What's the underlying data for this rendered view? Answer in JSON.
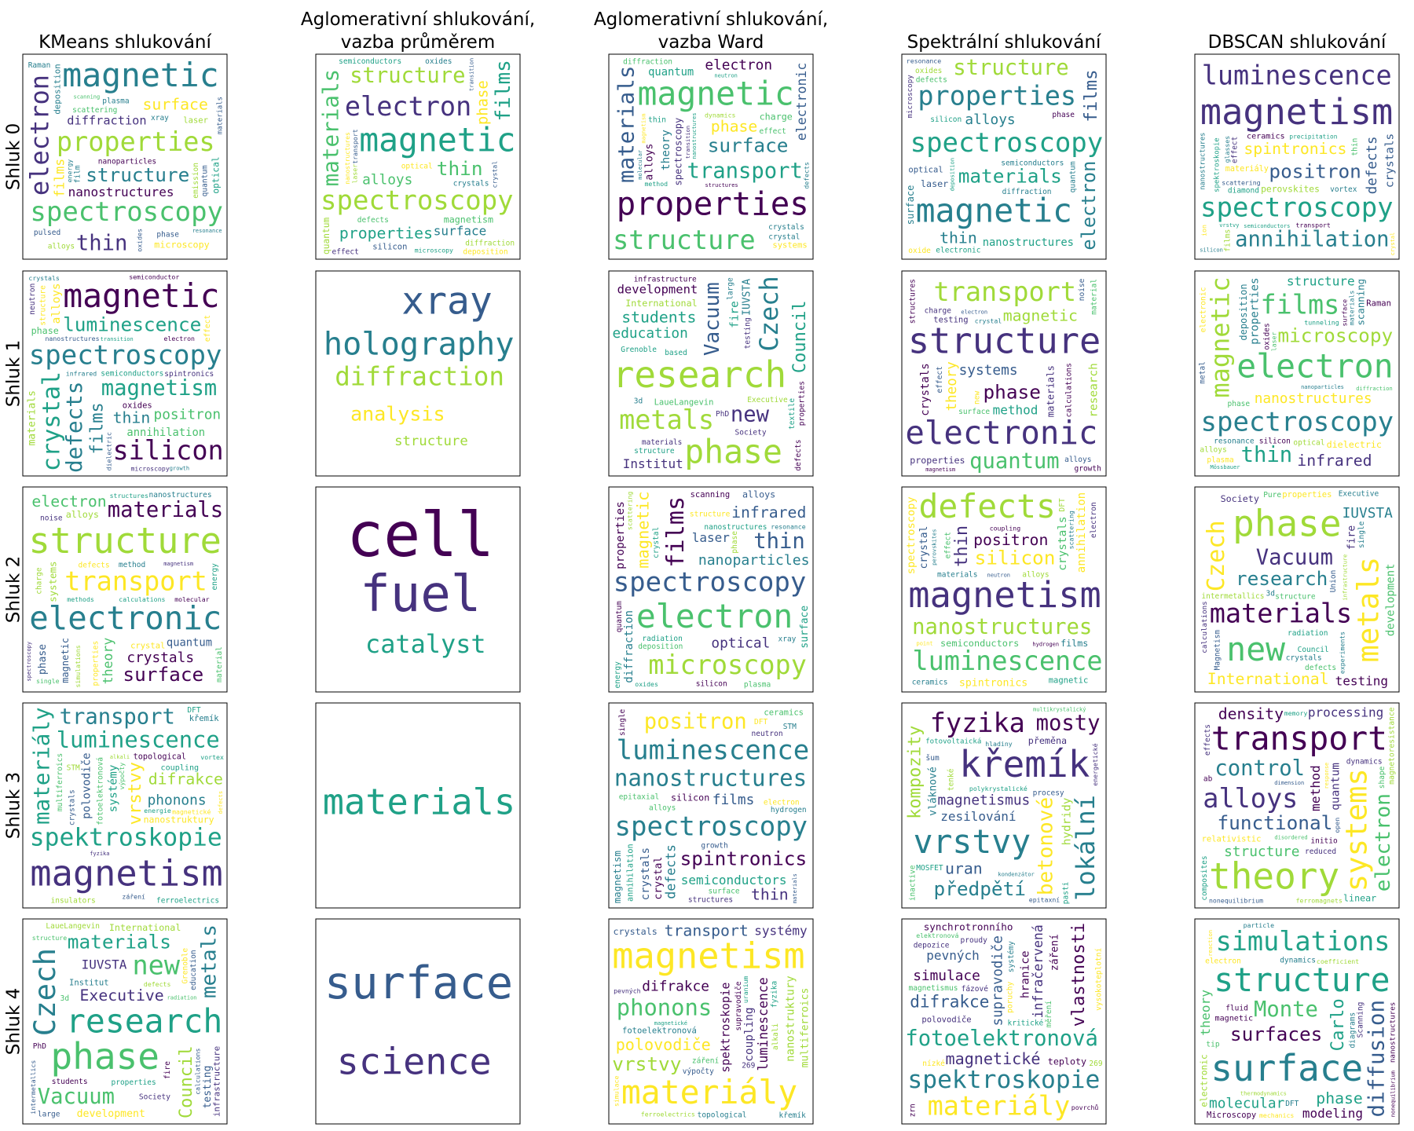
{
  "chart_data": {
    "type": "wordcloud-grid",
    "columns": [
      [
        "KMeans shlukování"
      ],
      [
        "Aglomerativní shlukování,",
        "vazba průměrem"
      ],
      [
        "Aglomerativní shlukování,",
        "vazba Ward"
      ],
      [
        "Spektrální shlukování"
      ],
      [
        "DBSCAN shlukování"
      ]
    ],
    "rows": [
      "Shluk 0",
      "Shluk 1",
      "Shluk 2",
      "Shluk 3",
      "Shluk 4"
    ],
    "palette": [
      "#440154",
      "#46327e",
      "#365c8d",
      "#277f8e",
      "#1fa187",
      "#4ac16d",
      "#a0da39",
      "#fde725"
    ],
    "clouds": [
      [
        [
          "spectroscopy",
          "magnetic",
          "electron",
          "properties",
          "films",
          "thin",
          "structure",
          "materials",
          "surface",
          "diffraction",
          "nanostructures",
          "deposition",
          "optical",
          "microscopy",
          "laser",
          "alloys",
          "nanoparticles",
          "emission",
          "quantum",
          "scattering",
          "phase",
          "plasma",
          "energy",
          "resonance",
          "pulsed",
          "oxides",
          "Raman",
          "film",
          "xray",
          "scanning"
        ],
        [
          "spectroscopy",
          "magnetic",
          "materials",
          "electron",
          "films",
          "structure",
          "thin",
          "phase",
          "properties",
          "alloys",
          "surface",
          "nanostructures",
          "quantum",
          "magnetism",
          "silicon",
          "diffraction",
          "defects",
          "transport",
          "crystal",
          "optical",
          "semiconductors",
          "oxides",
          "laser",
          "microscopy",
          "deposition",
          "transition",
          "effect",
          "luminescence",
          "crystals"
        ],
        [
          "properties",
          "magnetic",
          "materials",
          "structure",
          "electronic",
          "transport",
          "surface",
          "spectroscopy",
          "phase",
          "electron",
          "quantum",
          "theory",
          "alloys",
          "charge",
          "systems",
          "crystals",
          "thin",
          "nanostructures",
          "defects",
          "crystal",
          "diffraction",
          "dynamics",
          "molecular",
          "calculations",
          "method",
          "magnetism",
          "effect",
          "transition",
          "structures",
          "neutron"
        ],
        [
          "spectroscopy",
          "magnetic",
          "electron",
          "properties",
          "films",
          "structure",
          "materials",
          "surface",
          "thin",
          "alloys",
          "nanostructures",
          "microscopy",
          "deposition",
          "laser",
          "optical",
          "diffraction",
          "phase",
          "quantum",
          "nanoparticles",
          "oxides",
          "silicon",
          "defects",
          "scanning",
          "electronic",
          "resonance",
          "transition",
          "semiconductors",
          "crystal",
          "oxide"
        ],
        [
          "magnetism",
          "spectroscopy",
          "defects",
          "luminescence",
          "nanostructures",
          "annihilation",
          "positron",
          "spektroskopie",
          "spintronics",
          "perovskites",
          "materiály",
          "crystals",
          "films",
          "ceramics",
          "precipitation",
          "diamond",
          "silicon",
          "glasses",
          "effect",
          "transport",
          "semiconductors",
          "ferroelectrics",
          "thin",
          "vortex",
          "scattering",
          "crystal",
          "coupling",
          "ion",
          "structures",
          "vrstvy"
        ]
      ],
      [
        [
          "spectroscopy",
          "magnetic",
          "defects",
          "silicon",
          "crystal",
          "magnetism",
          "luminescence",
          "films",
          "thin",
          "positron",
          "annihilation",
          "alloys",
          "materials",
          "phase",
          "oxides",
          "electron",
          "semiconductors",
          "effect",
          "dielectric",
          "nanostructures",
          "spintronics",
          "crystals",
          "structure",
          "microscopy",
          "infrared",
          "neutron",
          "transition",
          "properties",
          "semiconductor",
          "growth"
        ],
        [
          "xray",
          "holography",
          "diffraction",
          "analysis",
          "structure"
        ],
        [
          "research",
          "phase",
          "Czech",
          "metals",
          "Vacuum",
          "new",
          "development",
          "Council",
          "students",
          "education",
          "Institut",
          "fire",
          "IUVSTA",
          "International",
          "LaueLangevin",
          "Executive",
          "materials",
          "large",
          "testing",
          "Society",
          "infrastructure",
          "Grenoble",
          "textile",
          "PhD",
          "3d",
          "defects",
          "structure",
          "properties",
          "based",
          "intermetallics"
        ],
        [
          "structure",
          "electronic",
          "theory",
          "transport",
          "materials",
          "quantum",
          "phase",
          "crystals",
          "magnetic",
          "systems",
          "method",
          "research",
          "calculations",
          "properties",
          "testing",
          "charge",
          "growth",
          "structures",
          "effect",
          "alloys",
          "surface",
          "electron",
          "new",
          "spectroscopy",
          "magnetism",
          "noise",
          "crystal",
          "material",
          "defects",
          "single"
        ],
        [
          "spectroscopy",
          "electron",
          "magnetic",
          "films",
          "properties",
          "thin",
          "microscopy",
          "deposition",
          "infrared",
          "nanostructures",
          "structure",
          "scanning",
          "electronic",
          "dielectric",
          "Raman",
          "alloys",
          "resonance",
          "metal",
          "surface",
          "nanoparticles",
          "plasma",
          "diffraction",
          "oxides",
          "optical",
          "phase",
          "laser",
          "silicon",
          "materials",
          "Mössbauer",
          "tunneling"
        ]
      ],
      [
        [
          "structure",
          "electronic",
          "properties",
          "transport",
          "theory",
          "materials",
          "surface",
          "magnetic",
          "electron",
          "crystals",
          "quantum",
          "systems",
          "phase",
          "alloys",
          "crystal",
          "nanostructures",
          "method",
          "spectroscopy",
          "charge",
          "molecular",
          "methods",
          "calculations",
          "simulations",
          "defects",
          "noise",
          "energy",
          "structures",
          "material",
          "magnetism",
          "single"
        ],
        [
          "cell",
          "fuel",
          "catalyst"
        ],
        [
          "spectroscopy",
          "electron",
          "magnetic",
          "microscopy",
          "films",
          "thin",
          "nanoparticles",
          "diffraction",
          "infrared",
          "optical",
          "laser",
          "properties",
          "surface",
          "alloys",
          "scanning",
          "deposition",
          "silicon",
          "phase",
          "quantum",
          "nanostructures",
          "structure",
          "oxides",
          "crystal",
          "plasma",
          "radiation",
          "scattering",
          "resonance",
          "energy",
          "xray",
          "semiconductors"
        ],
        [
          "magnetism",
          "defects",
          "spectroscopy",
          "luminescence",
          "annihilation",
          "nanostructures",
          "silicon",
          "thin",
          "positron",
          "spintronics",
          "semiconductors",
          "crystals",
          "crystal",
          "films",
          "magnetic",
          "materials",
          "ceramics",
          "electron",
          "effect",
          "alloys",
          "hydrogen",
          "coupling",
          "perovskites",
          "scintillation",
          "ferroelectrics",
          "scattering",
          "neutron",
          "DFT",
          "point",
          "liquid"
        ],
        [
          "phase",
          "new",
          "metals",
          "materials",
          "Czech",
          "Vacuum",
          "research",
          "development",
          "International",
          "IUVSTA",
          "testing",
          "calculations",
          "fire",
          "Society",
          "properties",
          "structure",
          "defects",
          "Magnetism",
          "Union",
          "crystals",
          "Council",
          "Executive",
          "single",
          "3d",
          "intermetallics",
          "experiments",
          "radiation",
          "infrastructure",
          "Pure"
        ]
      ],
      [
        [
          "magnetism",
          "spektroskopie",
          "materiály",
          "luminescence",
          "vrstvy",
          "transport",
          "nanostruktury",
          "polovodiče",
          "difrakce",
          "phonons",
          "topological",
          "systémy",
          "fotoelektronová",
          "coupling",
          "křemík",
          "insulators",
          "ferroelectrics",
          "multiferroics",
          "crystals",
          "vortex",
          "STM",
          "DFT",
          "defects",
          "záření",
          "alkali",
          "supravodiče",
          "magnetické",
          "výpočty",
          "energie",
          "fyzika"
        ],
        [
          "materials"
        ],
        [
          "spectroscopy",
          "luminescence",
          "annihilation",
          "nanostructures",
          "defects",
          "positron",
          "spintronics",
          "crystals",
          "thin",
          "films",
          "semiconductors",
          "magnetism",
          "crystal",
          "silicon",
          "ceramics",
          "alloys",
          "electron",
          "materials",
          "scattering",
          "surface",
          "neutron",
          "growth",
          "magnetic",
          "epitaxial",
          "structures",
          "semiconductor",
          "hydrogen",
          "single",
          "STM",
          "DFT"
        ],
        [
          "křemík",
          "vrstvy",
          "lokální",
          "fyzika",
          "betonové",
          "mosty",
          "předpětí",
          "kompozity",
          "uran",
          "magnetismus",
          "zesilování",
          "hydridy",
          "vláknové",
          "přeměna",
          "fotovoltaická",
          "polykrystalické",
          "MOSFET",
          "pasti",
          "tenké",
          "hladiny",
          "šum",
          "procesy",
          "inactive",
          "multikrystalický",
          "kondenzátor",
          "energetické",
          "epitaxní",
          "scintilátory"
        ],
        [
          "theory",
          "transport",
          "systems",
          "alloys",
          "electron",
          "control",
          "functional",
          "method",
          "density",
          "structure",
          "processing",
          "quantum",
          "magnetoresistance",
          "linear",
          "relativistic",
          "ferromagnets",
          "initio",
          "effects",
          "composites",
          "dynamics",
          "nonequilibrium",
          "actuators",
          "response",
          "reduced",
          "dimension",
          "shape",
          "disordered",
          "open",
          "memory",
          "ab"
        ]
      ],
      [
        [
          "phase",
          "research",
          "Czech",
          "new",
          "metals",
          "Vacuum",
          "materials",
          "Council",
          "Executive",
          "development",
          "IUVSTA",
          "infrastructure",
          "testing",
          "International",
          "Institut",
          "students",
          "Society",
          "education",
          "Grenoble",
          "LaueLangevin",
          "properties",
          "large",
          "intermetallics",
          "PhD",
          "3d",
          "fire",
          "radiation",
          "calculations",
          "structure",
          "defects"
        ],
        [
          "surface",
          "science"
        ],
        [
          "magnetism",
          "materiály",
          "spektroskopie",
          "phonons",
          "luminescence",
          "polovodiče",
          "vrstvy",
          "nanostruktury",
          "transport",
          "difrakce",
          "systémy",
          "coupling",
          "multiferroics",
          "crystals",
          "fotoelektronová",
          "topological",
          "ferroelectrics",
          "supravodiče",
          "fyzika",
          "křemík",
          "záření",
          "výpočty",
          "alkali",
          "hydrides",
          "pevných",
          "simulace",
          "magnetické",
          "uranium",
          "vlastnosti",
          "269"
        ],
        [
          "spektroskopie",
          "fotoelektronová",
          "supravodiče",
          "materiály",
          "infračervená",
          "magnetické",
          "difrakce",
          "vlastnosti",
          "synchrotronního",
          "simulace",
          "pevných",
          "hranice",
          "záření",
          "teploty",
          "polovodiče",
          "magnetismus",
          "elektronová",
          "měření",
          "vysokoteplotní",
          "depozice",
          "proudy",
          "povrchů",
          "poruchy",
          "kritické",
          "nízké",
          "zrn",
          "fázové",
          "systémy",
          "269"
        ],
        [
          "surface",
          "structure",
          "diffusion",
          "simulations",
          "Carlo",
          "Monte",
          "surfaces",
          "theory",
          "phase",
          "molecular",
          "modeling",
          "nanostructures",
          "electronic",
          "magnetic",
          "Microscopy",
          "dynamics",
          "coefficient",
          "diagrams",
          "Scanning",
          "DFT",
          "thermodynamics",
          "electron",
          "nonequilibrium",
          "mechanics",
          "particle",
          "transport",
          "fluid",
          "reaction",
          "tip"
        ]
      ]
    ]
  }
}
